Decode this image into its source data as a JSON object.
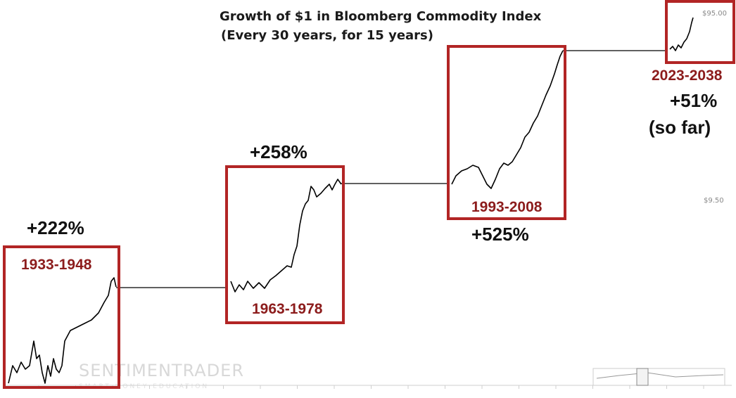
{
  "chart_data": {
    "type": "line",
    "title": "Growth of $1 in Bloomberg Commodity Index",
    "subtitle": "(Every 30 years, for 15 years)",
    "y_scale": "log",
    "y_ticks": [
      "$95.00",
      "$9.50"
    ],
    "grid": false,
    "watermark": "SENTIMENTRADER",
    "watermark_sub": "SMART MONEY EDUCATION",
    "periods": [
      {
        "label": "1933-1948",
        "gain": "+222%",
        "gain_sub": "",
        "start_value": 1.0,
        "end_value": 3.22
      },
      {
        "label": "1963-1978",
        "gain": "+258%",
        "gain_sub": "",
        "start_value": 3.22,
        "end_value": 11.53
      },
      {
        "label": "1993-2008",
        "gain": "+525%",
        "gain_sub": "",
        "start_value": 11.53,
        "end_value": 72.04
      },
      {
        "label": "2023-2038",
        "gain": "+51%",
        "gain_sub": "(so far)",
        "start_value": 72.04,
        "end_value": 108.8
      }
    ],
    "colors": {
      "box": "#b22525",
      "line": "#000000",
      "period_text": "#8c1c1c"
    }
  }
}
